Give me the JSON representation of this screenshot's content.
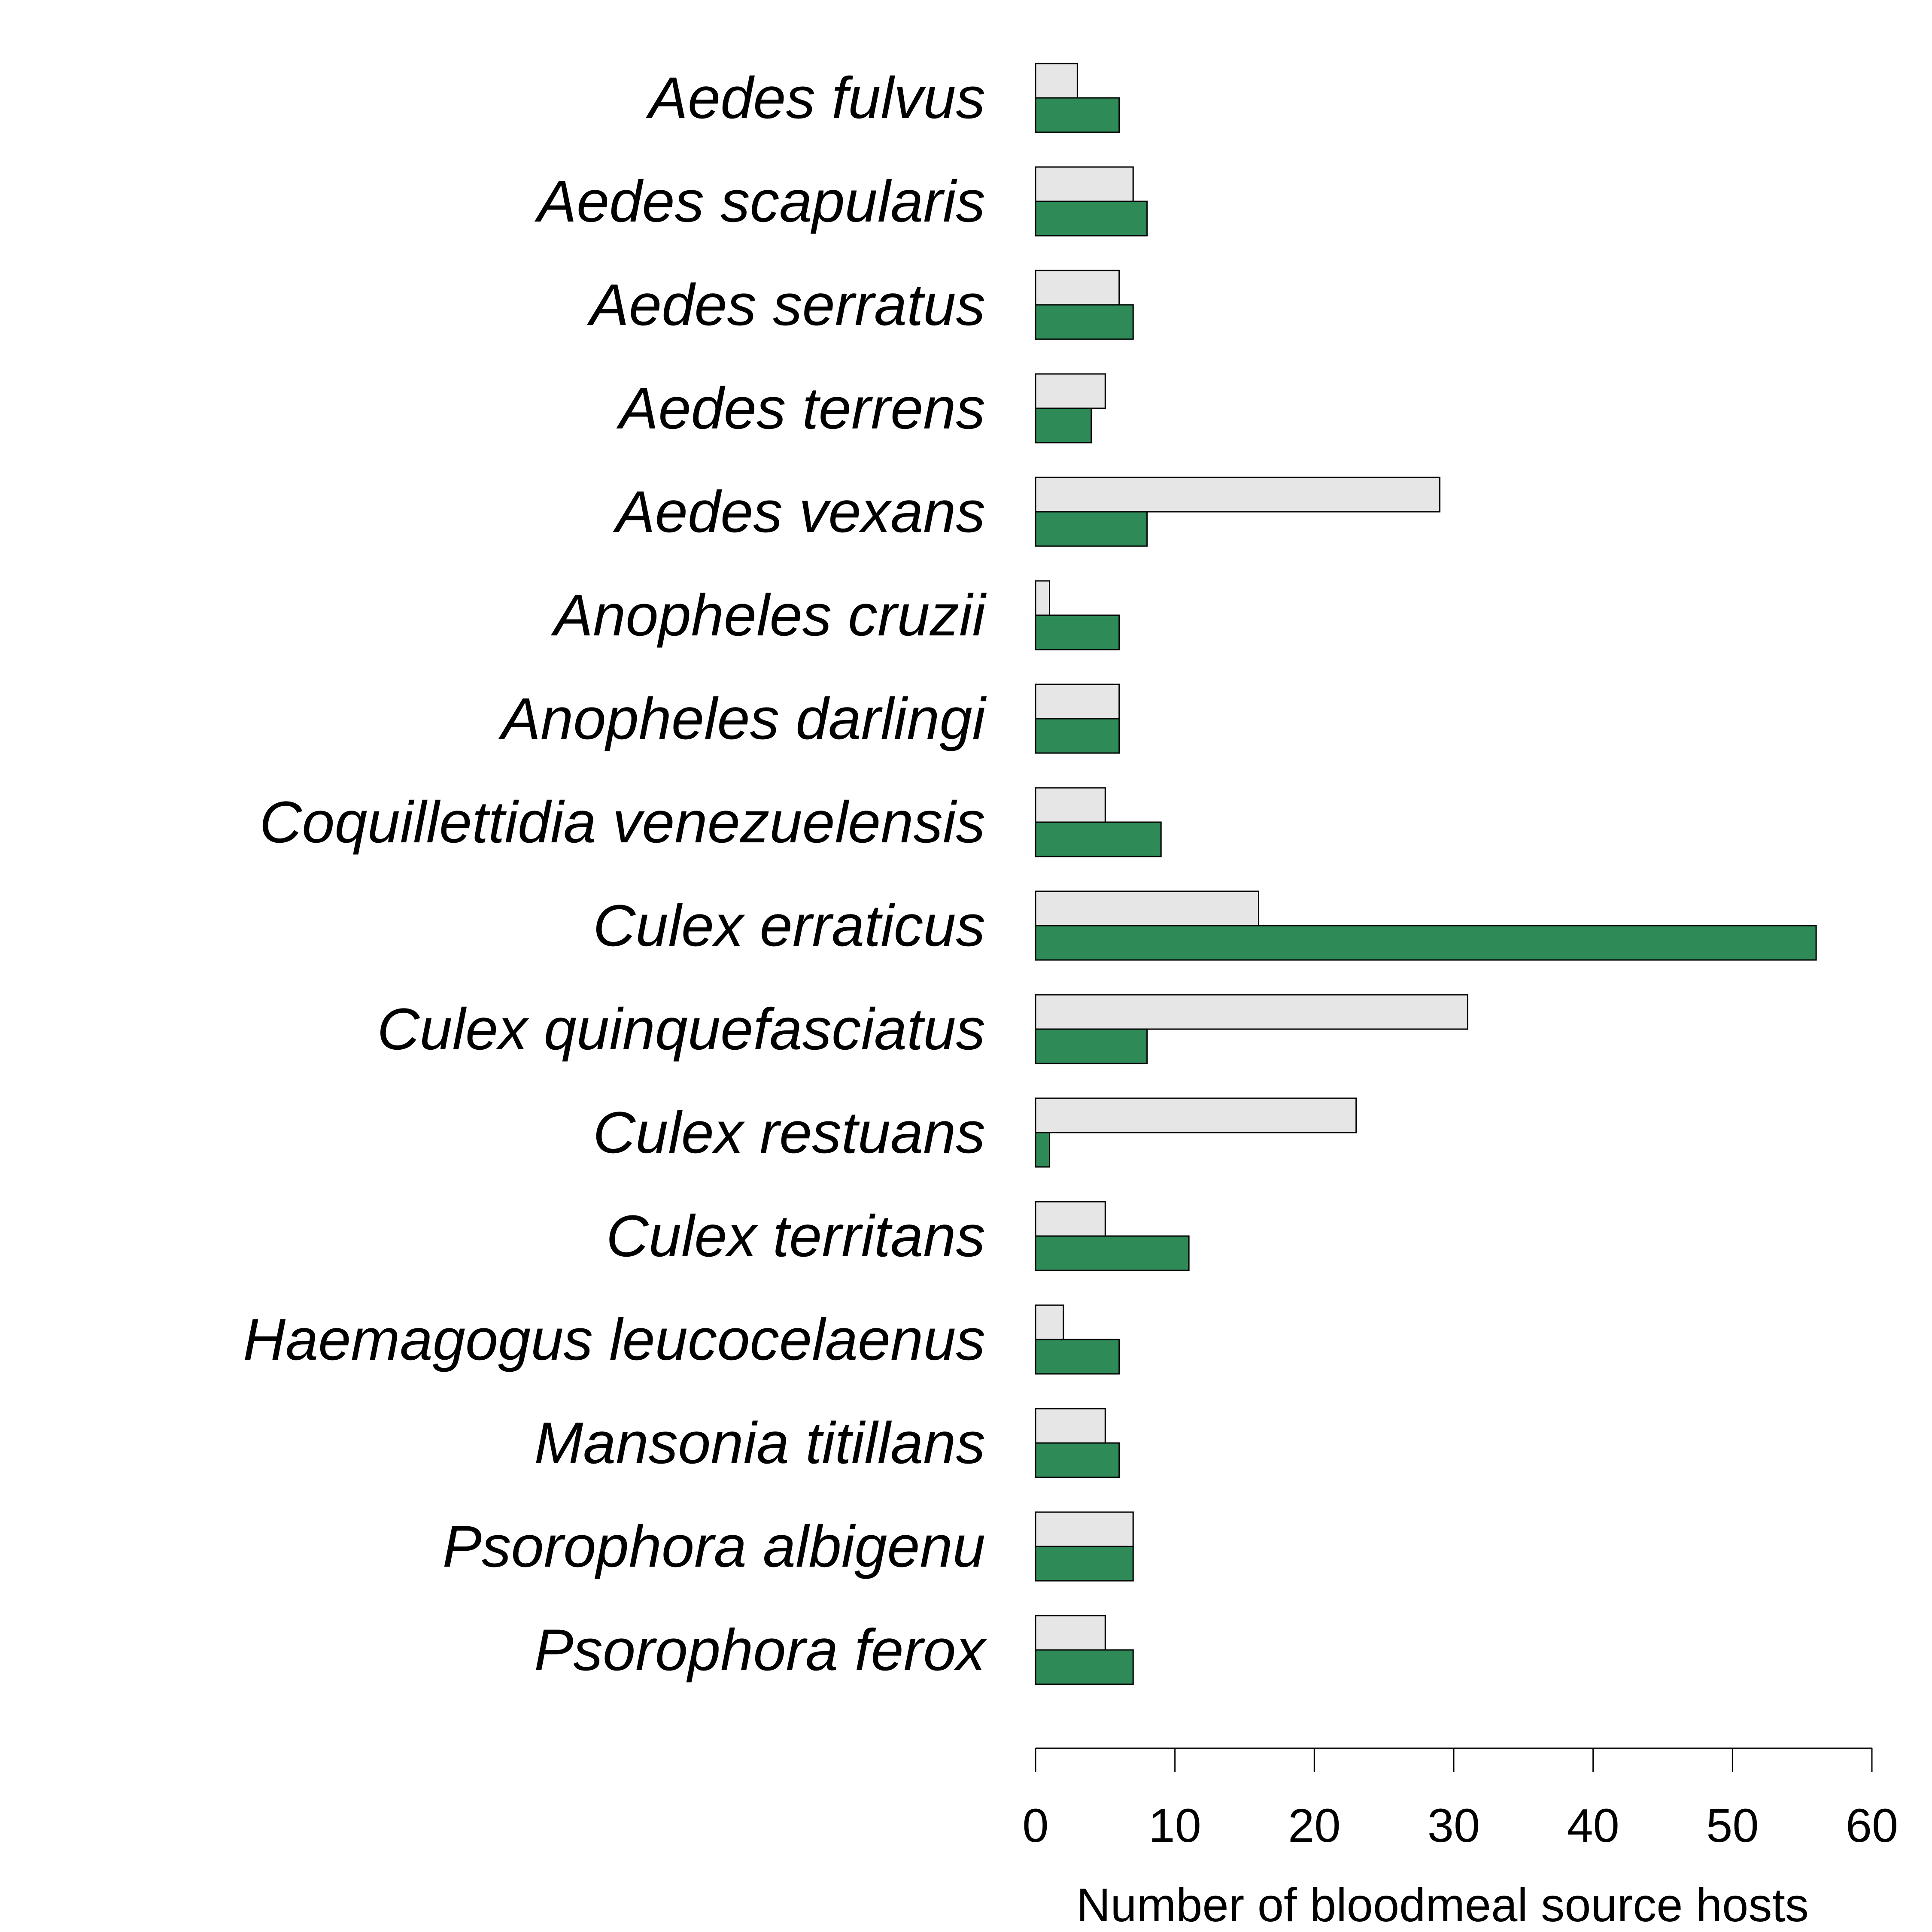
{
  "chart_data": {
    "type": "bar",
    "orientation": "horizontal",
    "categories": [
      "Aedes fulvus",
      "Aedes scapularis",
      "Aedes serratus",
      "Aedes terrens",
      "Aedes vexans",
      "Anopheles cruzii",
      "Anopheles darlingi",
      "Coquillettidia venezuelensis",
      "Culex erraticus",
      "Culex quinquefasciatus",
      "Culex restuans",
      "Culex territans",
      "Haemagogus leucocelaenus",
      "Mansonia titillans",
      "Psorophora albigenu",
      "Psorophora ferox"
    ],
    "series": [
      {
        "color": "#e6e6e6",
        "values": [
          3,
          7,
          6,
          5,
          29,
          1,
          6,
          5,
          16,
          31,
          23,
          5,
          2,
          5,
          7,
          5
        ]
      },
      {
        "color": "#2e8b57",
        "values": [
          6,
          8,
          7,
          4,
          8,
          6,
          6,
          9,
          56,
          8,
          1,
          11,
          6,
          6,
          7,
          7
        ]
      }
    ],
    "xlabel": "Number of bloodmeal source hosts",
    "xlim": [
      0,
      60
    ],
    "xticks": [
      "0",
      "10",
      "20",
      "30",
      "40",
      "50",
      "60"
    ],
    "grid": false,
    "legend": "none"
  }
}
